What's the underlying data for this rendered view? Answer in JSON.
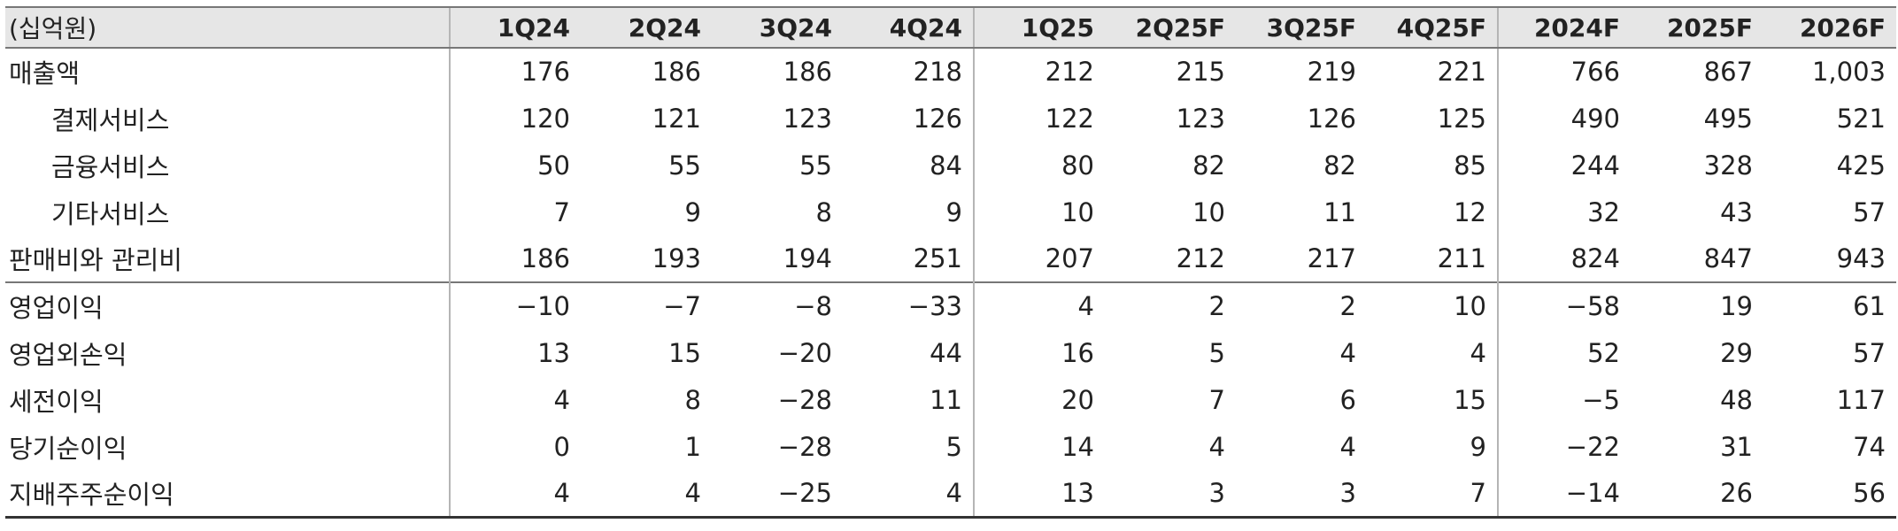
{
  "table": {
    "unit_label": "(십억원)",
    "columns": [
      "1Q24",
      "2Q24",
      "3Q24",
      "4Q24",
      "1Q25",
      "2Q25F",
      "3Q25F",
      "4Q25F",
      "2024F",
      "2025F",
      "2026F"
    ],
    "rows": [
      {
        "label": "매출액",
        "indent": false,
        "section_start": false,
        "values": [
          "176",
          "186",
          "186",
          "218",
          "212",
          "215",
          "219",
          "221",
          "766",
          "867",
          "1,003"
        ]
      },
      {
        "label": "결제서비스",
        "indent": true,
        "section_start": false,
        "values": [
          "120",
          "121",
          "123",
          "126",
          "122",
          "123",
          "126",
          "125",
          "490",
          "495",
          "521"
        ]
      },
      {
        "label": "금융서비스",
        "indent": true,
        "section_start": false,
        "values": [
          "50",
          "55",
          "55",
          "84",
          "80",
          "82",
          "82",
          "85",
          "244",
          "328",
          "425"
        ]
      },
      {
        "label": "기타서비스",
        "indent": true,
        "section_start": false,
        "values": [
          "7",
          "9",
          "8",
          "9",
          "10",
          "10",
          "11",
          "12",
          "32",
          "43",
          "57"
        ]
      },
      {
        "label": "판매비와 관리비",
        "indent": false,
        "section_start": false,
        "values": [
          "186",
          "193",
          "194",
          "251",
          "207",
          "212",
          "217",
          "211",
          "824",
          "847",
          "943"
        ]
      },
      {
        "label": "영업이익",
        "indent": false,
        "section_start": true,
        "values": [
          "−10",
          "−7",
          "−8",
          "−33",
          "4",
          "2",
          "2",
          "10",
          "−58",
          "19",
          "61"
        ]
      },
      {
        "label": "영업외손익",
        "indent": false,
        "section_start": false,
        "values": [
          "13",
          "15",
          "−20",
          "44",
          "16",
          "5",
          "4",
          "4",
          "52",
          "29",
          "57"
        ]
      },
      {
        "label": "세전이익",
        "indent": false,
        "section_start": false,
        "values": [
          "4",
          "8",
          "−28",
          "11",
          "20",
          "7",
          "6",
          "15",
          "−5",
          "48",
          "117"
        ]
      },
      {
        "label": "당기순이익",
        "indent": false,
        "section_start": false,
        "values": [
          "0",
          "1",
          "−28",
          "5",
          "14",
          "4",
          "4",
          "9",
          "−22",
          "31",
          "74"
        ]
      },
      {
        "label": "지배주주순이익",
        "indent": false,
        "section_start": false,
        "values": [
          "4",
          "4",
          "−25",
          "4",
          "13",
          "3",
          "3",
          "7",
          "−14",
          "26",
          "56"
        ]
      }
    ]
  }
}
